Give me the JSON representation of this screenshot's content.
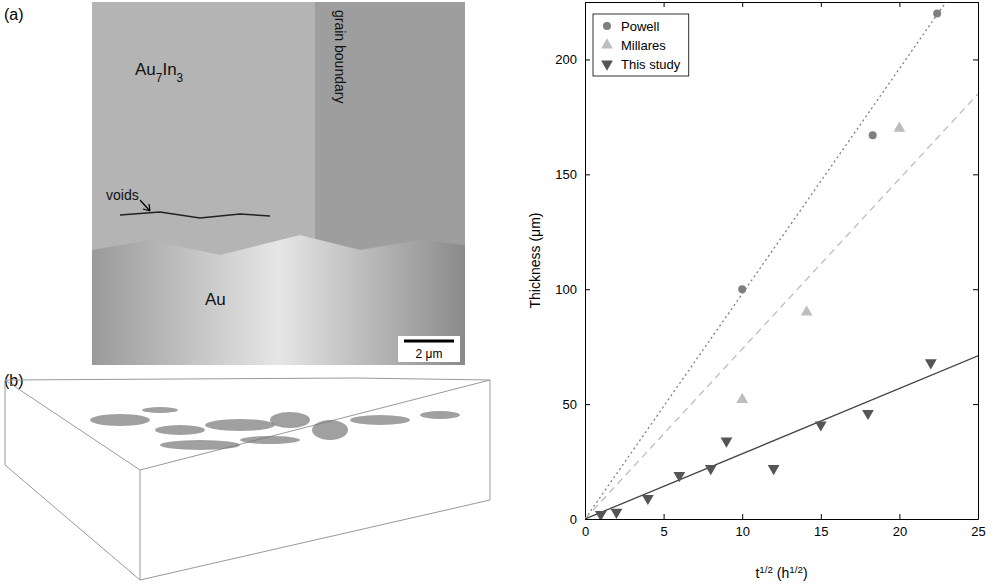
{
  "chart_data": {
    "type": "scatter",
    "xlabel": "t1/2 (h1/2)",
    "ylabel": "Thickness (μm)",
    "xlim": [
      0,
      25
    ],
    "ylim": [
      0,
      225
    ],
    "xticks": [
      0,
      5,
      10,
      15,
      20,
      25
    ],
    "yticks": [
      0,
      50,
      100,
      150,
      200
    ],
    "legend": "upper left",
    "grid": false,
    "series": [
      {
        "name": "Powell",
        "color": "#7f7f7f",
        "marker": "circle",
        "x": [
          10,
          18.3,
          22.4
        ],
        "values": [
          100,
          167,
          220
        ]
      },
      {
        "name": "Millares",
        "color": "#bdbdbd",
        "marker": "triangle-up",
        "x": [
          10,
          14.1,
          20
        ],
        "values": [
          52,
          90,
          170
        ]
      },
      {
        "name": "This study",
        "color": "#555555",
        "marker": "triangle-down",
        "x": [
          1,
          2,
          4,
          6,
          8,
          9,
          12,
          15,
          18,
          22
        ],
        "values": [
          2,
          3,
          9,
          19,
          22,
          34,
          22,
          41,
          46,
          68
        ]
      }
    ],
    "fits": [
      {
        "color": "#7f7f7f",
        "line_style": "dotted",
        "x": [
          0,
          25
        ],
        "values": [
          0,
          245
        ]
      },
      {
        "color": "#bdbdbd",
        "line_style": "dashed",
        "x": [
          0,
          25
        ],
        "values": [
          0,
          185
        ]
      },
      {
        "color": "#444444",
        "line_style": "solid",
        "x": [
          0,
          25
        ],
        "values": [
          0,
          71
        ]
      }
    ]
  },
  "panels": [
    {
      "label": "(a)",
      "annotations": [
        "Au7In3",
        "grain boundary",
        "voids",
        "Au"
      ],
      "scale_bar": "2 μm"
    },
    {
      "label": "(b)"
    }
  ]
}
